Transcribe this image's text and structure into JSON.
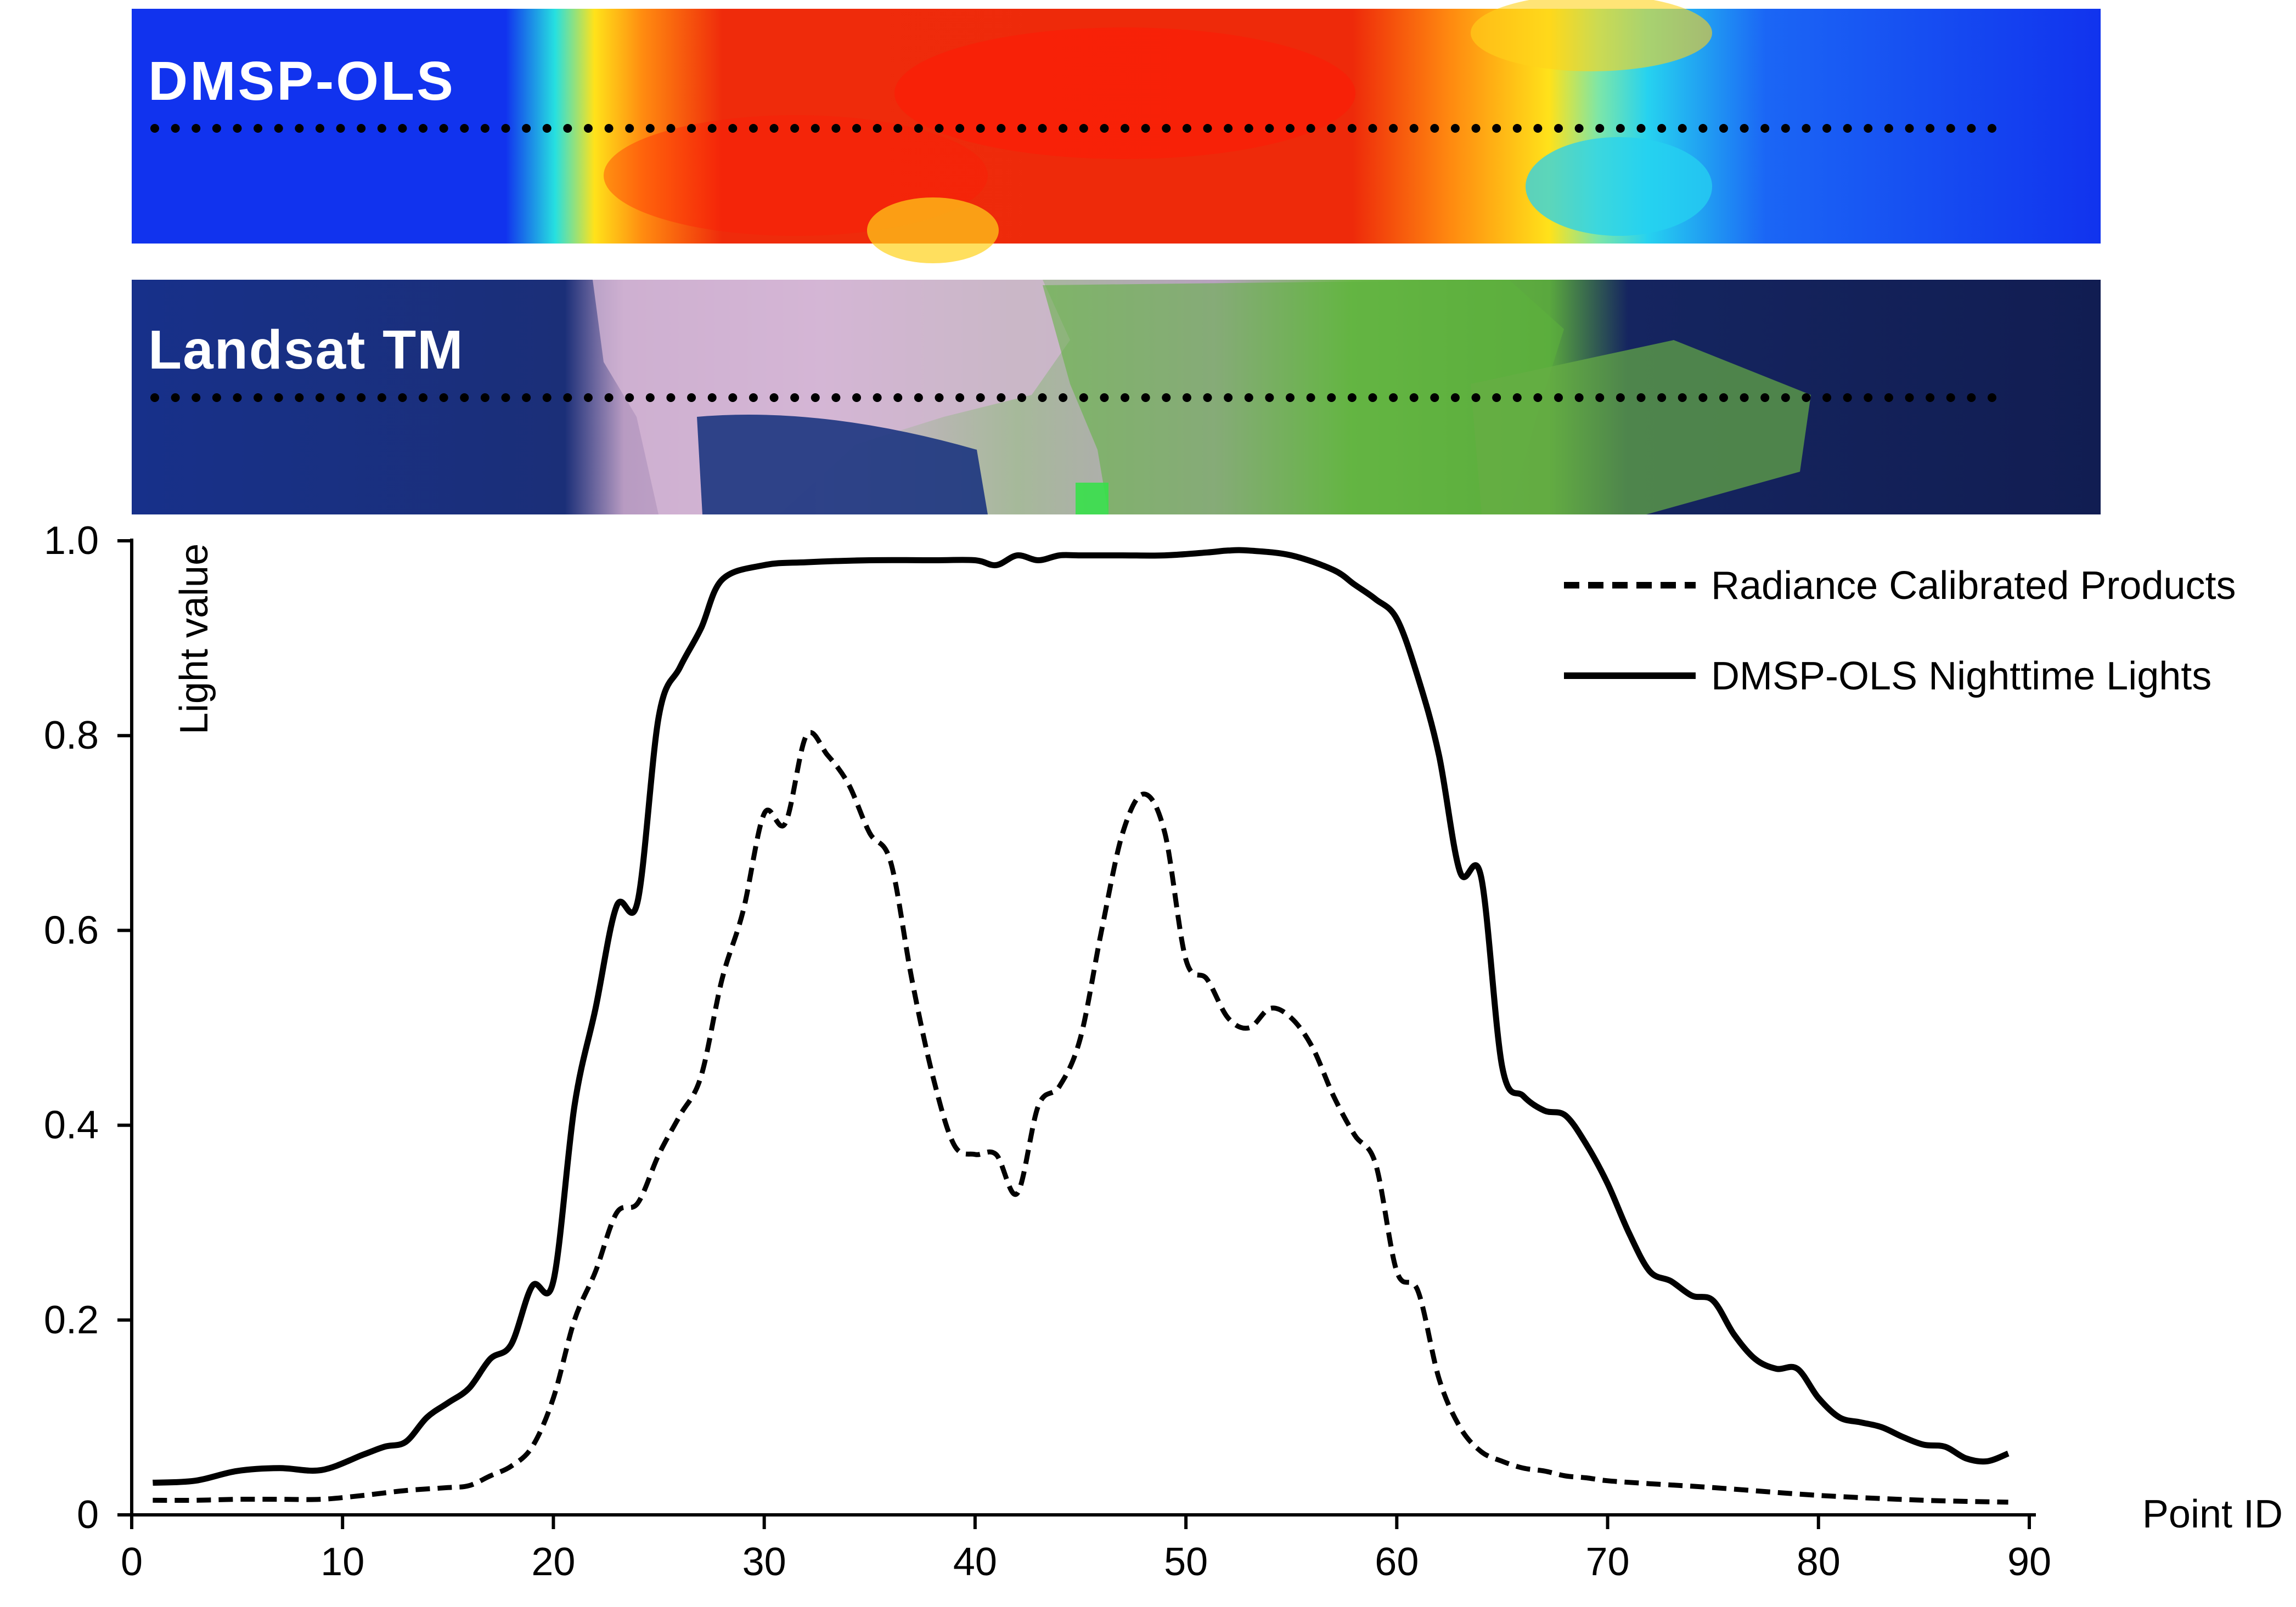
{
  "panels": {
    "top_label": "DMSP-OLS",
    "middle_label": "Landsat TM",
    "sample_point_count": 90
  },
  "colors": {
    "heat_low": "#1133ee",
    "heat_mid": "#26e0e0",
    "heat_yellow": "#ffe21a",
    "heat_orange": "#ff8a10",
    "heat_high": "#ef2b0b",
    "water": "#172a72",
    "urban": "#d8b8d8",
    "vegetation": "#63b83c",
    "line": "#000000"
  },
  "chart_data": {
    "type": "line",
    "title": "",
    "xlabel": "Point ID",
    "ylabel": "Light value",
    "xlim": [
      0,
      90
    ],
    "ylim": [
      0,
      1
    ],
    "x_ticks": [
      0,
      10,
      20,
      30,
      40,
      50,
      60,
      70,
      80,
      90
    ],
    "y_ticks": [
      0,
      0.2,
      0.4,
      0.6,
      0.8,
      1.0
    ],
    "y_tick_labels": [
      "0",
      "0.2",
      "0.4",
      "0.6",
      "0.8",
      "1.0"
    ],
    "grid": false,
    "legend_position": "top-right",
    "series": [
      {
        "name": "Radiance Calibrated Products",
        "style": "dashed",
        "x": [
          1,
          3,
          5,
          7,
          9,
          11,
          13,
          15,
          16,
          17,
          18,
          19,
          20,
          21,
          22,
          23,
          24,
          25,
          26,
          27,
          28,
          29,
          30,
          31,
          32,
          33,
          34,
          35,
          36,
          37,
          38,
          39,
          40,
          41,
          42,
          43,
          44,
          45,
          46,
          47,
          48,
          49,
          50,
          51,
          52,
          53,
          54,
          55,
          56,
          57,
          58,
          59,
          60,
          61,
          62,
          63,
          64,
          65,
          66,
          67,
          68,
          69,
          70,
          72,
          75,
          80,
          85,
          89
        ],
        "y": [
          0.015,
          0.015,
          0.016,
          0.016,
          0.016,
          0.02,
          0.025,
          0.028,
          0.03,
          0.04,
          0.05,
          0.07,
          0.12,
          0.2,
          0.25,
          0.31,
          0.32,
          0.37,
          0.41,
          0.45,
          0.55,
          0.62,
          0.72,
          0.71,
          0.8,
          0.78,
          0.75,
          0.7,
          0.67,
          0.55,
          0.45,
          0.38,
          0.37,
          0.37,
          0.33,
          0.42,
          0.44,
          0.49,
          0.6,
          0.7,
          0.74,
          0.7,
          0.57,
          0.55,
          0.51,
          0.5,
          0.52,
          0.51,
          0.48,
          0.43,
          0.39,
          0.36,
          0.25,
          0.23,
          0.14,
          0.09,
          0.065,
          0.055,
          0.048,
          0.045,
          0.04,
          0.038,
          0.035,
          0.032,
          0.028,
          0.02,
          0.015,
          0.013
        ]
      },
      {
        "name": "DMSP-OLS Nighttime Lights",
        "style": "solid",
        "x": [
          1,
          3,
          5,
          7,
          9,
          11,
          12,
          13,
          14,
          15,
          16,
          17,
          18,
          19,
          20,
          21,
          22,
          23,
          24,
          25,
          26,
          27,
          28,
          30,
          32,
          35,
          38,
          40,
          41,
          42,
          43,
          44,
          45,
          47,
          49,
          51,
          52,
          53,
          55,
          57,
          58,
          59,
          60,
          61,
          62,
          63,
          64,
          65,
          66,
          67,
          68,
          69,
          70,
          71,
          72,
          73,
          74,
          75,
          76,
          77,
          78,
          79,
          80,
          81,
          82,
          83,
          84,
          85,
          86,
          87,
          88,
          89
        ],
        "y": [
          0.033,
          0.035,
          0.045,
          0.048,
          0.046,
          0.062,
          0.07,
          0.075,
          0.1,
          0.115,
          0.13,
          0.16,
          0.175,
          0.235,
          0.24,
          0.42,
          0.52,
          0.625,
          0.63,
          0.82,
          0.87,
          0.91,
          0.96,
          0.975,
          0.978,
          0.98,
          0.98,
          0.98,
          0.975,
          0.985,
          0.98,
          0.985,
          0.985,
          0.985,
          0.985,
          0.988,
          0.99,
          0.99,
          0.985,
          0.97,
          0.955,
          0.94,
          0.92,
          0.86,
          0.78,
          0.66,
          0.655,
          0.46,
          0.43,
          0.415,
          0.41,
          0.38,
          0.34,
          0.29,
          0.25,
          0.24,
          0.225,
          0.22,
          0.185,
          0.16,
          0.15,
          0.15,
          0.12,
          0.1,
          0.095,
          0.09,
          0.08,
          0.072,
          0.07,
          0.058,
          0.055,
          0.063
        ]
      }
    ]
  }
}
